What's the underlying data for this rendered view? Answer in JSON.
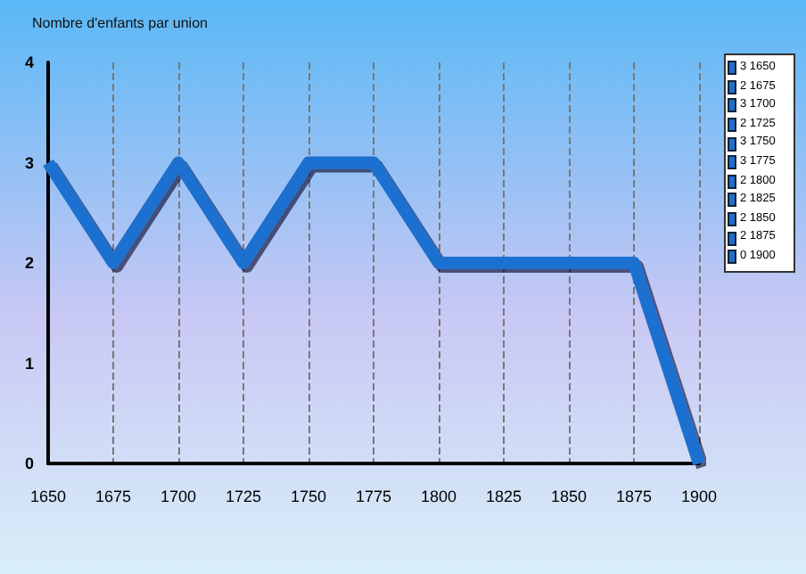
{
  "chart_data": {
    "type": "line",
    "ylabel": "Nombre d'enfants par union",
    "categories": [
      "1650",
      "1675",
      "1700",
      "1725",
      "1750",
      "1775",
      "1800",
      "1825",
      "1850",
      "1875",
      "1900"
    ],
    "series": [
      {
        "color": "#1e6fcf",
        "values": [
          3,
          2,
          3,
          2,
          3,
          3,
          2,
          2,
          2,
          2,
          0
        ]
      }
    ],
    "ylim": [
      0,
      4
    ],
    "yticks": [
      0,
      1,
      2,
      3,
      4
    ],
    "grid": "x",
    "marker": "none",
    "line_style": "solid",
    "annotations": [
      "3 1650",
      "2 1675",
      "3 1700",
      "2 1725",
      "3 1750",
      "3 1775",
      "2 1800",
      "2 1825",
      "2 1850",
      "2 1875",
      "0 1900"
    ]
  }
}
